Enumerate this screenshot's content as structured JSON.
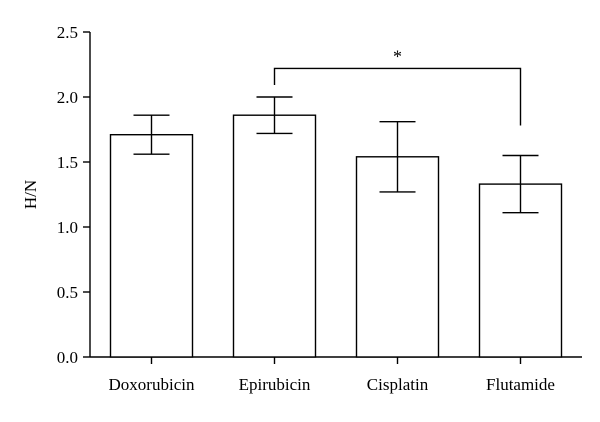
{
  "chart_data": {
    "type": "bar",
    "categories": [
      "Doxorubicin",
      "Epirubicin",
      "Cisplatin",
      "Flutamide"
    ],
    "values": [
      1.71,
      1.86,
      1.54,
      1.33
    ],
    "error_upper": [
      1.86,
      2.0,
      1.81,
      1.55
    ],
    "error_lower": [
      1.56,
      1.72,
      1.27,
      1.11
    ],
    "xlabel": "",
    "ylabel": "H/N",
    "ylim": [
      0,
      2.5
    ],
    "yticks": [
      0.0,
      0.5,
      1.0,
      1.5,
      2.0,
      2.5
    ],
    "ytick_labels": [
      "0.0",
      "0.5",
      "1.0",
      "1.5",
      "2.0",
      "2.5"
    ],
    "grid": false,
    "annotations": [
      {
        "type": "significance",
        "from": "Epirubicin",
        "to": "Flutamide",
        "label": "*",
        "y": 2.22
      }
    ]
  }
}
